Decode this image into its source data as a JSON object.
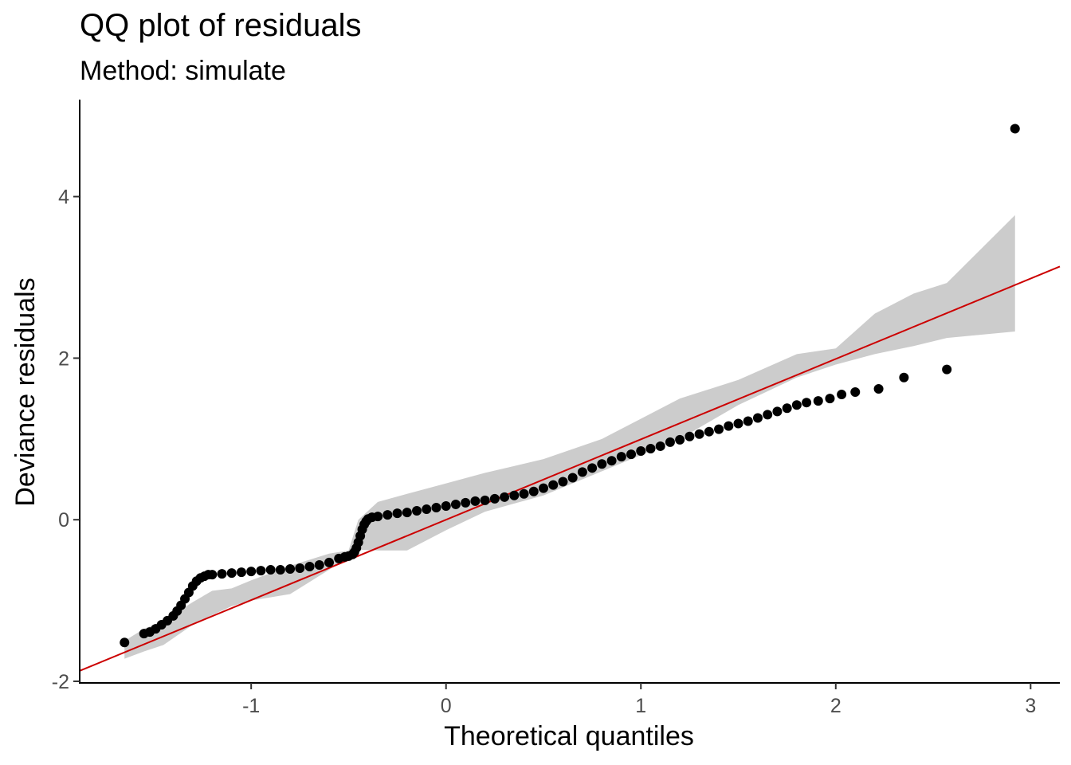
{
  "chart_data": {
    "type": "scatter",
    "title": "QQ plot of residuals",
    "subtitle": "Method: simulate",
    "xlabel": "Theoretical quantiles",
    "ylabel": "Deviance residuals",
    "xlim": [
      -1.88,
      3.15
    ],
    "ylim": [
      -2.02,
      5.2
    ],
    "xticks": [
      -1,
      0,
      1,
      2,
      3
    ],
    "yticks": [
      -2,
      0,
      2,
      4
    ],
    "grid": false,
    "colors": {
      "points": "#000000",
      "line": "#cc0000",
      "band": "#cccccc"
    },
    "reference_line": {
      "slope": 0.995,
      "intercept": 0.0
    },
    "band": {
      "x": [
        -1.65,
        -1.55,
        -1.45,
        -1.3,
        -1.2,
        -1.1,
        -1.0,
        -0.8,
        -0.6,
        -0.5,
        -0.45,
        -0.35,
        -0.2,
        0.0,
        0.2,
        0.5,
        0.8,
        1.0,
        1.2,
        1.5,
        1.8,
        2.0,
        2.2,
        2.4,
        2.57,
        2.92
      ],
      "upper": [
        -1.5,
        -1.35,
        -1.25,
        -1.02,
        -0.88,
        -0.85,
        -0.75,
        -0.57,
        -0.42,
        -0.38,
        0.0,
        0.22,
        0.32,
        0.45,
        0.58,
        0.75,
        1.0,
        1.25,
        1.5,
        1.73,
        2.05,
        2.12,
        2.55,
        2.8,
        2.93,
        3.77
      ],
      "lower": [
        -1.72,
        -1.63,
        -1.55,
        -1.3,
        -1.18,
        -1.07,
        -1.0,
        -0.92,
        -0.62,
        -0.45,
        -0.37,
        -0.38,
        -0.38,
        -0.13,
        0.1,
        0.3,
        0.6,
        0.8,
        1.0,
        1.42,
        1.76,
        1.92,
        2.05,
        2.15,
        2.25,
        2.33
      ]
    },
    "series": [
      {
        "x": [
          -1.65,
          -1.55,
          -1.52,
          -1.49,
          -1.46,
          -1.43,
          -1.4,
          -1.38,
          -1.36,
          -1.34,
          -1.32,
          -1.3,
          -1.28,
          -1.26,
          -1.24,
          -1.22,
          -1.2,
          -1.15,
          -1.1,
          -1.05,
          -1.0,
          -0.95,
          -0.9,
          -0.85,
          -0.8,
          -0.75,
          -0.7,
          -0.65,
          -0.6,
          -0.55,
          -0.52,
          -0.5,
          -0.48,
          -0.47,
          -0.46,
          -0.45,
          -0.44,
          -0.43,
          -0.42,
          -0.41,
          -0.4,
          -0.38,
          -0.35,
          -0.3,
          -0.25,
          -0.2,
          -0.15,
          -0.1,
          -0.05,
          0.0,
          0.05,
          0.1,
          0.15,
          0.2,
          0.25,
          0.3,
          0.35,
          0.4,
          0.45,
          0.5,
          0.55,
          0.6,
          0.65,
          0.7,
          0.75,
          0.8,
          0.85,
          0.9,
          0.95,
          1.0,
          1.05,
          1.1,
          1.15,
          1.2,
          1.25,
          1.3,
          1.35,
          1.4,
          1.45,
          1.5,
          1.55,
          1.6,
          1.65,
          1.7,
          1.75,
          1.8,
          1.85,
          1.91,
          1.97,
          2.03,
          2.1,
          2.22,
          2.35,
          2.57,
          2.92
        ],
        "y": [
          -1.52,
          -1.41,
          -1.39,
          -1.35,
          -1.3,
          -1.25,
          -1.19,
          -1.13,
          -1.06,
          -0.98,
          -0.9,
          -0.82,
          -0.76,
          -0.72,
          -0.7,
          -0.68,
          -0.68,
          -0.67,
          -0.66,
          -0.65,
          -0.64,
          -0.63,
          -0.62,
          -0.62,
          -0.61,
          -0.6,
          -0.58,
          -0.56,
          -0.53,
          -0.48,
          -0.46,
          -0.45,
          -0.43,
          -0.4,
          -0.35,
          -0.28,
          -0.2,
          -0.12,
          -0.06,
          -0.02,
          0.01,
          0.03,
          0.04,
          0.06,
          0.08,
          0.09,
          0.11,
          0.13,
          0.15,
          0.17,
          0.19,
          0.21,
          0.23,
          0.24,
          0.26,
          0.28,
          0.3,
          0.32,
          0.35,
          0.39,
          0.43,
          0.47,
          0.52,
          0.59,
          0.64,
          0.69,
          0.73,
          0.78,
          0.81,
          0.85,
          0.88,
          0.91,
          0.96,
          0.99,
          1.03,
          1.06,
          1.09,
          1.12,
          1.16,
          1.19,
          1.22,
          1.26,
          1.3,
          1.34,
          1.38,
          1.42,
          1.45,
          1.47,
          1.5,
          1.55,
          1.58,
          1.62,
          1.76,
          1.86,
          4.84
        ]
      }
    ]
  }
}
